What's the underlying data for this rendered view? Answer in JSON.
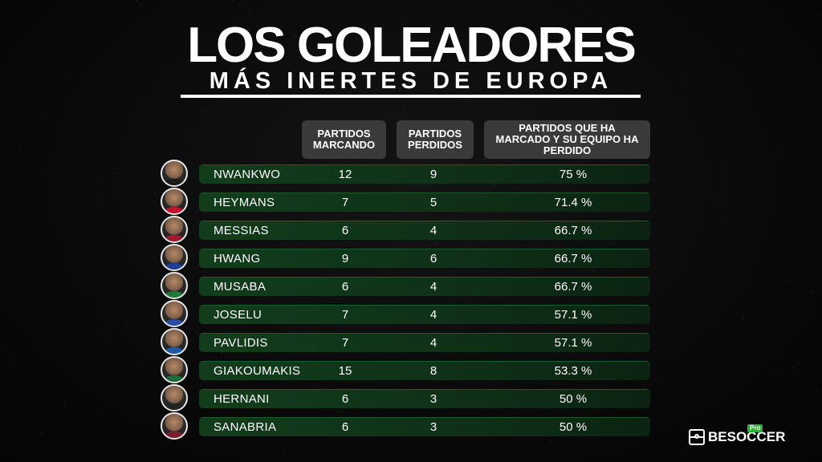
{
  "title": "LOS GOLEADORES",
  "subtitle": "MÁS INERTES DE EUROPA",
  "headers": {
    "goals": "PARTIDOS MARCANDO",
    "lost": "PARTIDOS PERDIDOS",
    "pct": "PARTIDOS QUE HA MARCADO Y SU EQUIPO HA PERDIDO"
  },
  "rows": [
    {
      "name": "NWANKWO",
      "goals": "12",
      "lost": "9",
      "pct": "75 %"
    },
    {
      "name": "HEYMANS",
      "goals": "7",
      "lost": "5",
      "pct": "71.4 %"
    },
    {
      "name": "MESSIAS",
      "goals": "6",
      "lost": "4",
      "pct": "66.7 %"
    },
    {
      "name": "HWANG",
      "goals": "9",
      "lost": "6",
      "pct": "66.7 %"
    },
    {
      "name": "MUSABA",
      "goals": "6",
      "lost": "4",
      "pct": "66.7 %"
    },
    {
      "name": "JOSELU",
      "goals": "7",
      "lost": "4",
      "pct": "57.1 %"
    },
    {
      "name": "PAVLIDIS",
      "goals": "7",
      "lost": "4",
      "pct": "57.1 %"
    },
    {
      "name": "GIAKOUMAKIS",
      "goals": "15",
      "lost": "8",
      "pct": "53.3 %"
    },
    {
      "name": "HERNANI",
      "goals": "6",
      "lost": "3",
      "pct": "50 %"
    },
    {
      "name": "SANABRIA",
      "goals": "6",
      "lost": "3",
      "pct": "50 %"
    }
  ],
  "logo": {
    "text": "BESOCCER",
    "badge": "Pro"
  },
  "colors": {
    "row_green": "#123d1b",
    "header_gray": "#3a3a3a",
    "logo_green": "#2fae3a"
  }
}
